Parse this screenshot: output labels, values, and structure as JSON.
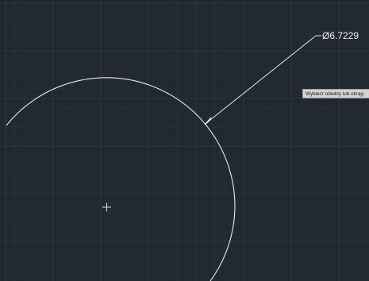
{
  "canvas": {
    "background": "#212830",
    "grid_minor_color": "#262e38",
    "grid_major_color": "#2c3540",
    "geometry_color": "#e8e8e8"
  },
  "dimension": {
    "label": "Ø6.7229"
  },
  "cursor_tooltip": {
    "text": "Wybierz obiekty lub okrąg"
  },
  "center_marker": {
    "icon": "crosshair-plus-icon"
  }
}
